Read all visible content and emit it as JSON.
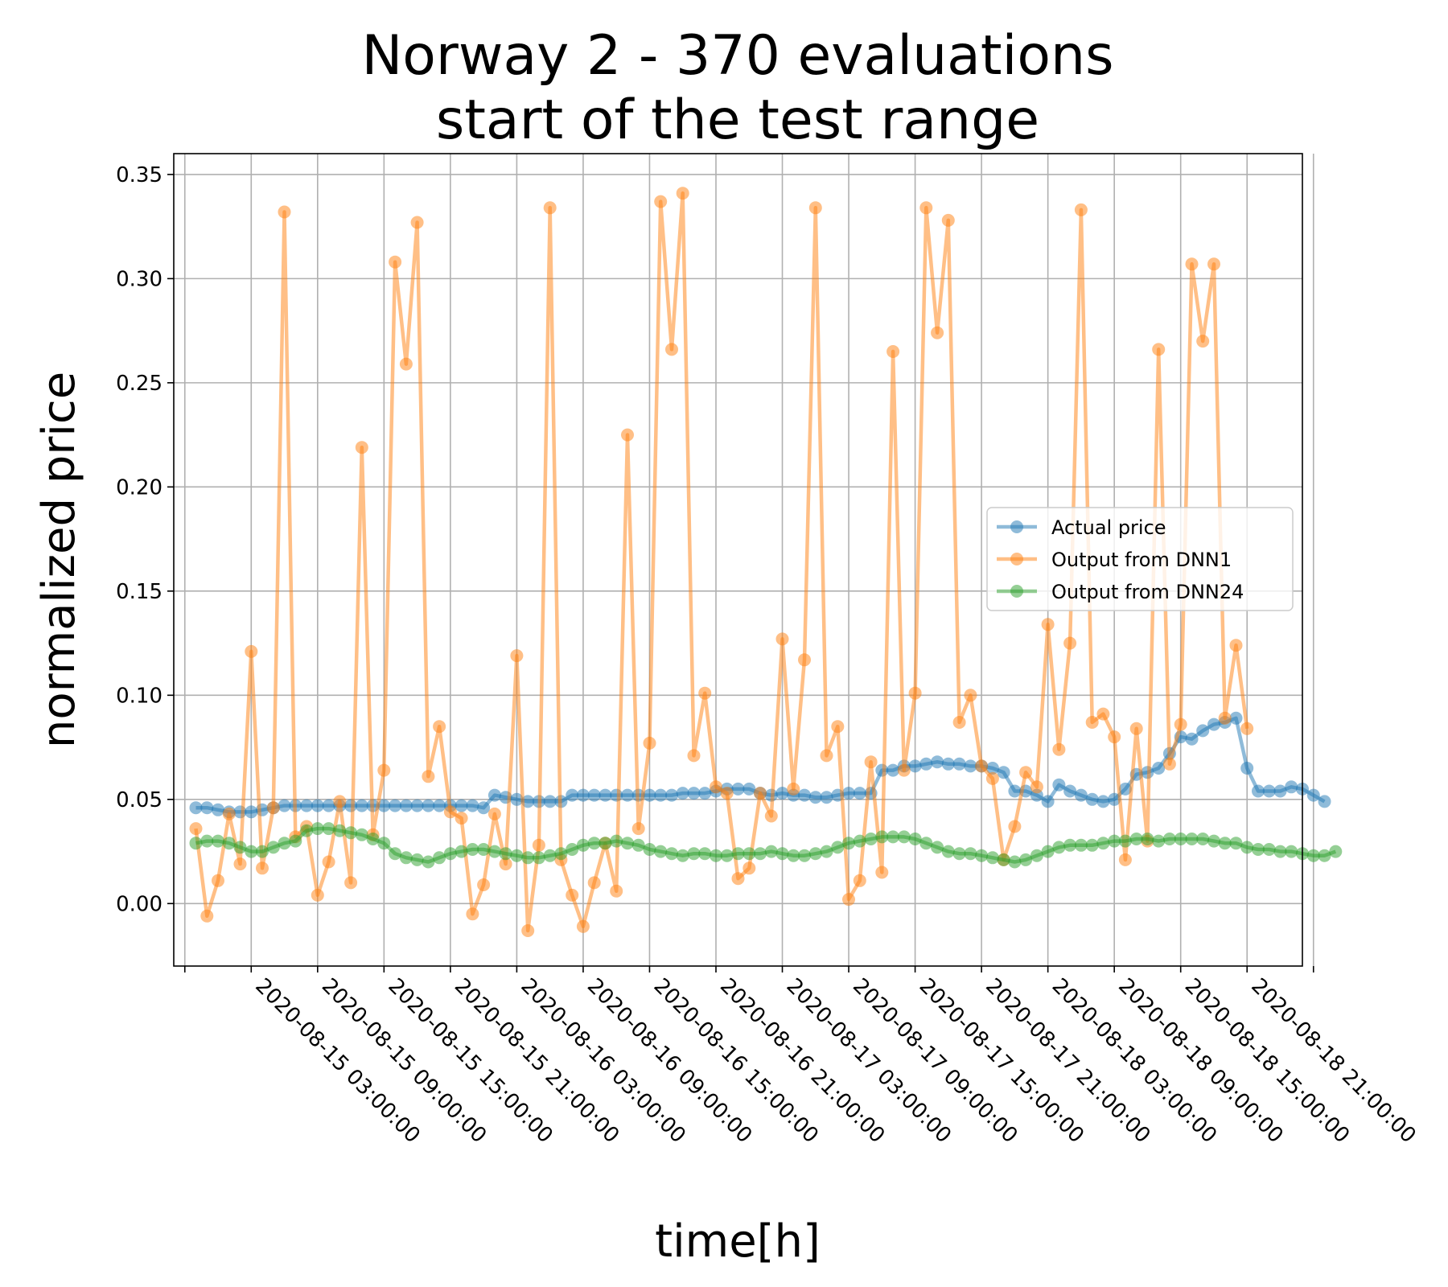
{
  "chart_data": {
    "type": "line",
    "title": [
      "Norway 2 - 370 evaluations",
      "start of the test range"
    ],
    "xlabel": "time[h]",
    "ylabel": "normalized price",
    "x_start": "2020-08-14 22:00:00",
    "x_step_hours": 1,
    "xlim": [
      "2020-08-14 20:00:00",
      "2020-08-19 02:00:00"
    ],
    "ylim": [
      -0.03,
      0.36
    ],
    "yticks": [
      0.0,
      0.05,
      0.1,
      0.15,
      0.2,
      0.25,
      0.3,
      0.35
    ],
    "ytick_labels": [
      "0.00",
      "0.05",
      "0.10",
      "0.15",
      "0.20",
      "0.25",
      "0.30",
      "0.35"
    ],
    "xticks": [
      "2020-08-14 21:00:00",
      "2020-08-15 03:00:00",
      "2020-08-15 09:00:00",
      "2020-08-15 15:00:00",
      "2020-08-15 21:00:00",
      "2020-08-16 03:00:00",
      "2020-08-16 09:00:00",
      "2020-08-16 15:00:00",
      "2020-08-16 21:00:00",
      "2020-08-17 03:00:00",
      "2020-08-17 09:00:00",
      "2020-08-17 15:00:00",
      "2020-08-17 21:00:00",
      "2020-08-18 03:00:00",
      "2020-08-18 09:00:00",
      "2020-08-18 15:00:00",
      "2020-08-18 21:00:00",
      "2020-08-19 03:00:00"
    ],
    "xtick_labels": [
      "",
      "2020-08-15 03:00:00",
      "2020-08-15 09:00:00",
      "2020-08-15 15:00:00",
      "2020-08-15 21:00:00",
      "2020-08-16 03:00:00",
      "2020-08-16 09:00:00",
      "2020-08-16 15:00:00",
      "2020-08-16 21:00:00",
      "2020-08-17 03:00:00",
      "2020-08-17 09:00:00",
      "2020-08-17 15:00:00",
      "2020-08-17 21:00:00",
      "2020-08-18 03:00:00",
      "2020-08-18 09:00:00",
      "2020-08-18 15:00:00",
      "2020-08-18 21:00:00",
      ""
    ],
    "grid": true,
    "legend_position": "center-right",
    "series": [
      {
        "name": "Actual price",
        "color": "#1f77b4",
        "values": [
          0.046,
          0.046,
          0.045,
          0.044,
          0.044,
          0.044,
          0.045,
          0.046,
          0.047,
          0.047,
          0.047,
          0.047,
          0.047,
          0.047,
          0.047,
          0.047,
          0.047,
          0.047,
          0.047,
          0.047,
          0.047,
          0.047,
          0.047,
          0.047,
          0.047,
          0.047,
          0.046,
          0.052,
          0.051,
          0.05,
          0.049,
          0.049,
          0.049,
          0.049,
          0.052,
          0.052,
          0.052,
          0.052,
          0.052,
          0.052,
          0.052,
          0.052,
          0.052,
          0.052,
          0.053,
          0.053,
          0.053,
          0.054,
          0.055,
          0.055,
          0.055,
          0.053,
          0.052,
          0.053,
          0.052,
          0.052,
          0.051,
          0.051,
          0.052,
          0.053,
          0.053,
          0.053,
          0.064,
          0.064,
          0.066,
          0.066,
          0.067,
          0.068,
          0.067,
          0.067,
          0.066,
          0.066,
          0.065,
          0.063,
          0.054,
          0.054,
          0.052,
          0.049,
          0.057,
          0.054,
          0.052,
          0.05,
          0.049,
          0.05,
          0.055,
          0.062,
          0.063,
          0.065,
          0.072,
          0.08,
          0.079,
          0.083,
          0.086,
          0.087,
          0.089,
          0.065,
          0.054,
          0.054,
          0.054,
          0.056,
          0.055,
          0.052,
          0.049
        ]
      },
      {
        "name": "Output from DNN1",
        "color": "#ff7f0e",
        "values": [
          0.036,
          -0.006,
          0.011,
          0.043,
          0.019,
          0.121,
          0.017,
          0.046,
          0.332,
          0.032,
          0.037,
          0.004,
          0.02,
          0.049,
          0.01,
          0.219,
          0.033,
          0.064,
          0.308,
          0.259,
          0.327,
          0.061,
          0.085,
          0.044,
          0.041,
          -0.005,
          0.009,
          0.043,
          0.019,
          0.119,
          -0.013,
          0.028,
          0.334,
          0.021,
          0.004,
          -0.011,
          0.01,
          0.029,
          0.006,
          0.225,
          0.036,
          0.077,
          0.337,
          0.266,
          0.341,
          0.071,
          0.101,
          0.056,
          0.053,
          0.012,
          0.017,
          0.053,
          0.042,
          0.127,
          0.055,
          0.117,
          0.334,
          0.071,
          0.085,
          0.002,
          0.011,
          0.068,
          0.015,
          0.265,
          0.064,
          0.101,
          0.334,
          0.274,
          0.328,
          0.087,
          0.1,
          0.066,
          0.06,
          0.021,
          0.037,
          0.063,
          0.056,
          0.134,
          0.074,
          0.125,
          0.333,
          0.087,
          0.091,
          0.08,
          0.021,
          0.084,
          0.03,
          0.266,
          0.067,
          0.086,
          0.307,
          0.27,
          0.307,
          0.089,
          0.124,
          0.084
        ]
      },
      {
        "name": "Output from DNN24",
        "color": "#2ca02c",
        "values": [
          0.029,
          0.03,
          0.03,
          0.029,
          0.027,
          0.025,
          0.025,
          0.027,
          0.029,
          0.03,
          0.035,
          0.036,
          0.036,
          0.035,
          0.034,
          0.033,
          0.031,
          0.029,
          0.024,
          0.022,
          0.021,
          0.02,
          0.022,
          0.024,
          0.025,
          0.026,
          0.026,
          0.025,
          0.024,
          0.023,
          0.022,
          0.022,
          0.023,
          0.024,
          0.026,
          0.028,
          0.029,
          0.029,
          0.03,
          0.029,
          0.028,
          0.026,
          0.025,
          0.024,
          0.023,
          0.024,
          0.024,
          0.023,
          0.023,
          0.024,
          0.024,
          0.024,
          0.025,
          0.024,
          0.023,
          0.023,
          0.024,
          0.025,
          0.027,
          0.029,
          0.03,
          0.031,
          0.032,
          0.032,
          0.032,
          0.031,
          0.029,
          0.027,
          0.025,
          0.024,
          0.024,
          0.023,
          0.022,
          0.021,
          0.02,
          0.021,
          0.023,
          0.025,
          0.027,
          0.028,
          0.028,
          0.028,
          0.029,
          0.03,
          0.03,
          0.031,
          0.031,
          0.03,
          0.031,
          0.031,
          0.031,
          0.031,
          0.03,
          0.029,
          0.029,
          0.027,
          0.026,
          0.026,
          0.025,
          0.025,
          0.024,
          0.023,
          0.023,
          0.025
        ]
      }
    ]
  }
}
